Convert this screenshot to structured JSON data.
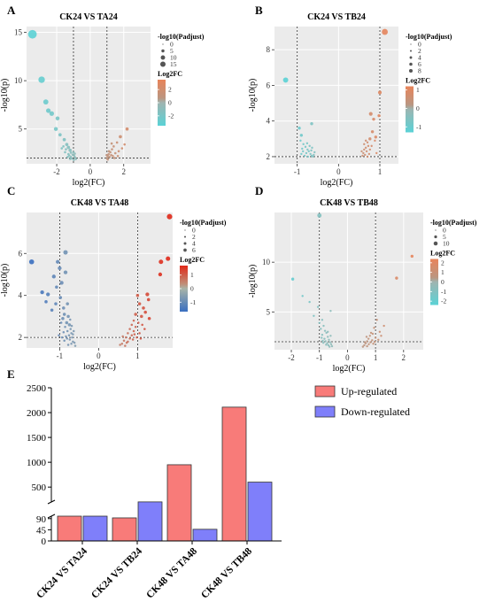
{
  "chart_data": [
    {
      "panel": "A",
      "type": "scatter",
      "title": "CK24 VS TA24",
      "xlabel": "log2(FC)",
      "ylabel": "-log10(p)",
      "xlim": [
        -3.8,
        3.6
      ],
      "ylim": [
        1.4,
        15.6
      ],
      "xticks": [
        -2,
        0,
        2
      ],
      "yticks": [
        5,
        10,
        15
      ],
      "vlines": [
        -1,
        1
      ],
      "hline": 2,
      "color_legend_title": "Log2FC",
      "color_ticks": [
        2,
        0,
        -2
      ],
      "color_range": [
        -3.5,
        3.5
      ],
      "size_legend_title": "-log10(Padjust)",
      "size_ticks": [
        0,
        5,
        10,
        15
      ],
      "points": [
        [
          -3.45,
          14.8,
          14
        ],
        [
          -2.9,
          10.1,
          8
        ],
        [
          -2.65,
          7.8,
          5
        ],
        [
          -2.3,
          6.6,
          4
        ],
        [
          -2.5,
          6.9,
          4
        ],
        [
          -1.95,
          6.1,
          3
        ],
        [
          -2.05,
          5.0,
          3
        ],
        [
          -1.8,
          4.4,
          2
        ],
        [
          -1.55,
          3.9,
          2
        ],
        [
          -1.4,
          3.4,
          2
        ],
        [
          -1.3,
          3.1,
          2
        ],
        [
          -1.2,
          2.8,
          2
        ],
        [
          -1.15,
          2.55,
          1
        ],
        [
          -1.05,
          2.35,
          1
        ],
        [
          -0.95,
          2.2,
          1
        ],
        [
          -0.9,
          2.05,
          1
        ],
        [
          -1.25,
          2.25,
          1
        ],
        [
          -1.5,
          2.6,
          1
        ],
        [
          -1.7,
          3.0,
          1
        ],
        [
          -1.35,
          2.1,
          1
        ],
        [
          -1.1,
          1.95,
          1
        ],
        [
          -0.98,
          1.8,
          1
        ],
        [
          -0.85,
          1.9,
          1
        ],
        [
          -1.6,
          3.2,
          1
        ],
        [
          -1.45,
          2.9,
          1
        ],
        [
          -1.15,
          2.1,
          1
        ],
        [
          -1.0,
          2.6,
          1
        ],
        [
          -0.92,
          2.45,
          1
        ],
        [
          -1.2,
          1.9,
          1
        ],
        [
          -1.3,
          2.4,
          1
        ],
        [
          1.0,
          2.0,
          1
        ],
        [
          1.05,
          2.2,
          1
        ],
        [
          1.1,
          2.4,
          1
        ],
        [
          1.15,
          2.1,
          1
        ],
        [
          1.2,
          2.6,
          1
        ],
        [
          1.25,
          2.3,
          1
        ],
        [
          1.3,
          2.9,
          1
        ],
        [
          1.35,
          2.2,
          1
        ],
        [
          1.4,
          3.2,
          1
        ],
        [
          1.5,
          2.5,
          1
        ],
        [
          1.6,
          3.6,
          1
        ],
        [
          1.7,
          2.7,
          1
        ],
        [
          1.8,
          4.2,
          2
        ],
        [
          1.9,
          3.0,
          1
        ],
        [
          2.05,
          3.4,
          1
        ],
        [
          2.2,
          5.0,
          2
        ],
        [
          1.05,
          1.85,
          1
        ],
        [
          1.12,
          2.7,
          1
        ],
        [
          0.98,
          2.3,
          1
        ],
        [
          1.45,
          2.0,
          1
        ],
        [
          1.28,
          3.5,
          1
        ],
        [
          1.65,
          2.2,
          1
        ]
      ]
    },
    {
      "panel": "B",
      "type": "scatter",
      "title": "CK24 VS TB24",
      "xlabel": "log2(FC)",
      "ylabel": "-log10(p)",
      "xlim": [
        -1.55,
        1.45
      ],
      "ylim": [
        1.6,
        9.3
      ],
      "xticks": [
        -1,
        0,
        1
      ],
      "yticks": [
        2,
        4,
        6,
        8
      ],
      "vlines": [
        -1,
        1
      ],
      "hline": 2,
      "color_legend_title": "Log2FC",
      "color_ticks": [
        1,
        0,
        -1
      ],
      "color_range": [
        -1.3,
        1.2
      ],
      "size_legend_title": "-log10(Padjust)",
      "size_ticks": [
        0,
        2,
        4,
        6,
        8
      ],
      "points": [
        [
          -1.28,
          6.3,
          6
        ],
        [
          -0.65,
          3.85,
          2
        ],
        [
          -0.95,
          3.6,
          2
        ],
        [
          -0.9,
          3.2,
          2
        ],
        [
          -0.92,
          2.9,
          1
        ],
        [
          -0.85,
          2.7,
          1
        ],
        [
          -0.8,
          2.55,
          1
        ],
        [
          -0.75,
          2.4,
          1
        ],
        [
          -0.72,
          2.3,
          1
        ],
        [
          -0.68,
          2.15,
          1
        ],
        [
          -0.65,
          2.05,
          1
        ],
        [
          -0.62,
          2.0,
          1
        ],
        [
          -0.6,
          2.1,
          1
        ],
        [
          -0.78,
          2.2,
          1
        ],
        [
          -0.88,
          2.45,
          1
        ],
        [
          -0.7,
          2.6,
          1
        ],
        [
          -0.82,
          2.05,
          1
        ],
        [
          -0.66,
          2.35,
          1
        ],
        [
          -0.74,
          2.0,
          1
        ],
        [
          -0.9,
          2.15,
          1
        ],
        [
          -0.58,
          2.25,
          1
        ],
        [
          -0.76,
          2.75,
          1
        ],
        [
          -0.86,
          2.3,
          1
        ],
        [
          -0.64,
          2.5,
          1
        ],
        [
          1.12,
          9.0,
          8
        ],
        [
          1.0,
          5.6,
          3
        ],
        [
          0.78,
          4.4,
          3
        ],
        [
          0.98,
          4.3,
          2
        ],
        [
          0.85,
          4.1,
          2
        ],
        [
          0.82,
          3.4,
          2
        ],
        [
          0.9,
          3.1,
          2
        ],
        [
          0.76,
          3.0,
          2
        ],
        [
          0.7,
          2.8,
          1
        ],
        [
          0.72,
          2.6,
          1
        ],
        [
          0.66,
          2.5,
          1
        ],
        [
          0.62,
          2.4,
          1
        ],
        [
          0.68,
          2.3,
          1
        ],
        [
          0.6,
          2.2,
          1
        ],
        [
          0.64,
          2.1,
          1
        ],
        [
          0.58,
          2.05,
          1
        ],
        [
          0.74,
          2.15,
          1
        ],
        [
          0.8,
          2.6,
          1
        ],
        [
          0.62,
          2.7,
          1
        ],
        [
          0.7,
          2.0,
          1
        ],
        [
          0.56,
          2.3,
          1
        ],
        [
          0.88,
          2.9,
          1
        ],
        [
          0.92,
          2.2,
          1
        ],
        [
          0.66,
          2.9,
          1
        ],
        [
          0.76,
          2.4,
          1
        ]
      ]
    },
    {
      "panel": "C",
      "type": "scatter",
      "title": "CK48 VS TA48",
      "xlabel": "log2(FC)",
      "ylabel": "-log10(p)",
      "xlim": [
        -1.85,
        1.9
      ],
      "ylim": [
        1.5,
        7.95
      ],
      "xticks": [
        -1,
        0,
        1
      ],
      "yticks": [
        2,
        4,
        6
      ],
      "vlines": [
        -1,
        1
      ],
      "hline": 2,
      "color_legend_title": "Log2FC",
      "color_ticks": [
        1,
        0,
        -1
      ],
      "color_range": [
        -1.7,
        1.7
      ],
      "size_legend_title": "-log10(Padjust)",
      "size_ticks": [
        0,
        2,
        4,
        6
      ],
      "points": [
        [
          -1.72,
          5.6,
          5
        ],
        [
          -1.45,
          4.15,
          3
        ],
        [
          -1.3,
          4.05,
          3
        ],
        [
          -1.35,
          3.7,
          2
        ],
        [
          -1.15,
          4.9,
          3
        ],
        [
          -1.05,
          5.6,
          3
        ],
        [
          -1.0,
          5.3,
          3
        ],
        [
          -0.85,
          6.05,
          4
        ],
        [
          -0.85,
          5.1,
          3
        ],
        [
          -0.95,
          4.6,
          3
        ],
        [
          -1.08,
          4.4,
          2
        ],
        [
          -0.98,
          3.9,
          2
        ],
        [
          -1.1,
          3.6,
          2
        ],
        [
          -1.2,
          3.3,
          2
        ],
        [
          -0.9,
          3.4,
          2
        ],
        [
          -0.8,
          3.6,
          2
        ],
        [
          -0.88,
          3.1,
          2
        ],
        [
          -0.78,
          3.0,
          2
        ],
        [
          -0.92,
          2.9,
          2
        ],
        [
          -0.82,
          2.7,
          2
        ],
        [
          -0.75,
          2.6,
          2
        ],
        [
          -0.86,
          2.5,
          1
        ],
        [
          -0.72,
          2.4,
          1
        ],
        [
          -0.8,
          2.3,
          1
        ],
        [
          -0.9,
          2.25,
          1
        ],
        [
          -0.7,
          2.2,
          1
        ],
        [
          -0.76,
          2.1,
          1
        ],
        [
          -0.84,
          2.05,
          1
        ],
        [
          -0.68,
          2.0,
          1
        ],
        [
          -0.74,
          1.9,
          1
        ],
        [
          -0.66,
          1.8,
          1
        ],
        [
          -0.62,
          1.75,
          1
        ],
        [
          -0.7,
          1.7,
          1
        ],
        [
          -0.78,
          1.65,
          1
        ],
        [
          -0.6,
          1.6,
          1
        ],
        [
          -0.94,
          2.0,
          1
        ],
        [
          -0.88,
          1.85,
          1
        ],
        [
          -1.02,
          2.1,
          1
        ],
        [
          -0.64,
          2.3,
          1
        ],
        [
          -0.96,
          2.7,
          1
        ],
        [
          -0.69,
          2.55,
          1
        ],
        [
          -0.73,
          2.85,
          1
        ],
        [
          -0.66,
          2.15,
          1
        ],
        [
          -0.81,
          1.95,
          1
        ],
        [
          1.82,
          7.75,
          6
        ],
        [
          1.78,
          5.75,
          4
        ],
        [
          1.6,
          5.6,
          4
        ],
        [
          1.58,
          5.0,
          3
        ],
        [
          1.25,
          4.05,
          3
        ],
        [
          1.0,
          4.0,
          2
        ],
        [
          1.05,
          3.6,
          2
        ],
        [
          1.15,
          3.4,
          2
        ],
        [
          1.28,
          3.8,
          2
        ],
        [
          1.2,
          3.2,
          2
        ],
        [
          0.95,
          3.1,
          2
        ],
        [
          1.1,
          3.0,
          2
        ],
        [
          0.9,
          2.8,
          1
        ],
        [
          1.02,
          2.7,
          1
        ],
        [
          0.85,
          2.6,
          1
        ],
        [
          0.95,
          2.5,
          1
        ],
        [
          0.8,
          2.4,
          1
        ],
        [
          0.9,
          2.3,
          1
        ],
        [
          0.75,
          2.2,
          1
        ],
        [
          0.85,
          2.1,
          1
        ],
        [
          0.7,
          2.0,
          1
        ],
        [
          0.8,
          1.95,
          1
        ],
        [
          0.65,
          1.85,
          1
        ],
        [
          0.75,
          1.8,
          1
        ],
        [
          0.6,
          1.7,
          1
        ],
        [
          0.55,
          1.65,
          1
        ],
        [
          0.68,
          1.6,
          1
        ],
        [
          1.05,
          2.2,
          1
        ],
        [
          1.12,
          2.6,
          1
        ],
        [
          0.98,
          2.0,
          1
        ],
        [
          0.88,
          1.9,
          1
        ],
        [
          1.18,
          2.4,
          1
        ],
        [
          0.72,
          1.75,
          1
        ],
        [
          0.62,
          2.05,
          1
        ],
        [
          0.92,
          2.15,
          1
        ],
        [
          1.3,
          2.9,
          2
        ],
        [
          1.08,
          1.95,
          1
        ]
      ]
    },
    {
      "panel": "D",
      "type": "scatter",
      "title": "CK48 VS TB48",
      "xlabel": "log2(FC)",
      "ylabel": "-log10(p)",
      "xlim": [
        -2.6,
        2.7
      ],
      "ylim": [
        1.2,
        15.0
      ],
      "xticks": [
        -2,
        -1,
        0,
        1,
        2
      ],
      "yticks": [
        5,
        10
      ],
      "vlines": [
        -1,
        1
      ],
      "hline": 2,
      "color_legend_title": "Log2FC",
      "color_ticks": [
        2,
        1,
        0,
        -1,
        -2
      ],
      "color_range": [
        -2.4,
        2.4
      ],
      "size_legend_title": "-log10(Padjust)",
      "size_ticks": [
        0,
        5,
        10
      ],
      "points": [
        [
          -1.0,
          14.7,
          4
        ],
        [
          -1.95,
          8.3,
          2
        ],
        [
          -1.6,
          6.6,
          1
        ],
        [
          -1.35,
          6.0,
          1
        ],
        [
          -1.05,
          5.5,
          1
        ],
        [
          -0.6,
          5.1,
          1
        ],
        [
          -1.2,
          4.6,
          1
        ],
        [
          -0.9,
          4.2,
          1
        ],
        [
          -1.0,
          3.9,
          1
        ],
        [
          -0.85,
          3.6,
          1
        ],
        [
          -0.95,
          3.3,
          1
        ],
        [
          -0.8,
          3.1,
          1
        ],
        [
          -0.75,
          2.9,
          1
        ],
        [
          -0.9,
          2.7,
          1
        ],
        [
          -0.7,
          2.5,
          1
        ],
        [
          -0.82,
          2.3,
          1
        ],
        [
          -0.66,
          2.2,
          1
        ],
        [
          -0.78,
          2.05,
          1
        ],
        [
          -0.62,
          1.95,
          1
        ],
        [
          -0.72,
          1.85,
          1
        ],
        [
          -0.58,
          1.75,
          1
        ],
        [
          -0.68,
          1.65,
          1
        ],
        [
          -0.55,
          1.55,
          1
        ],
        [
          -0.64,
          1.5,
          1
        ],
        [
          -0.88,
          2.1,
          1
        ],
        [
          -0.92,
          2.4,
          1
        ],
        [
          -0.76,
          1.7,
          1
        ],
        [
          -0.6,
          2.6,
          1
        ],
        [
          -0.7,
          3.0,
          1
        ],
        [
          -0.86,
          1.9,
          1
        ],
        [
          2.3,
          10.6,
          2
        ],
        [
          1.75,
          8.4,
          2
        ],
        [
          1.05,
          4.2,
          1
        ],
        [
          0.95,
          3.4,
          1
        ],
        [
          1.15,
          3.0,
          1
        ],
        [
          0.9,
          2.8,
          1
        ],
        [
          0.8,
          2.6,
          1
        ],
        [
          1.0,
          2.4,
          1
        ],
        [
          0.75,
          2.3,
          1
        ],
        [
          0.88,
          2.15,
          1
        ],
        [
          0.7,
          2.05,
          1
        ],
        [
          0.82,
          1.95,
          1
        ],
        [
          0.65,
          1.85,
          1
        ],
        [
          0.76,
          1.75,
          1
        ],
        [
          0.6,
          1.65,
          1
        ],
        [
          0.7,
          1.55,
          1
        ],
        [
          0.55,
          1.5,
          1
        ],
        [
          0.92,
          1.8,
          1
        ],
        [
          1.1,
          2.2,
          1
        ],
        [
          0.68,
          2.5,
          1
        ],
        [
          0.98,
          2.0,
          1
        ],
        [
          0.84,
          2.9,
          1
        ],
        [
          0.62,
          1.95,
          1
        ],
        [
          1.2,
          2.6,
          1
        ],
        [
          1.3,
          3.6,
          1
        ]
      ]
    },
    {
      "panel": "E",
      "type": "bar",
      "categories": [
        "CK24 VS TA24",
        "CK24 VS TB24",
        "CK48 VS TA48",
        "CK48 VS TB48"
      ],
      "series": [
        {
          "name": "Up-regulated",
          "values": [
            177,
            93,
            950,
            2110
          ],
          "color": "#f87b79"
        },
        {
          "name": "Down-regulated",
          "values": [
            187,
            202,
            47,
            600
          ],
          "color": "#7f7ffa"
        }
      ],
      "y_axis_break": [
        100,
        200
      ],
      "yticks": [
        0,
        45,
        90,
        500,
        1000,
        1500,
        2000,
        2500
      ],
      "ylim": [
        0,
        2500
      ],
      "legend_position": "top-right"
    }
  ]
}
